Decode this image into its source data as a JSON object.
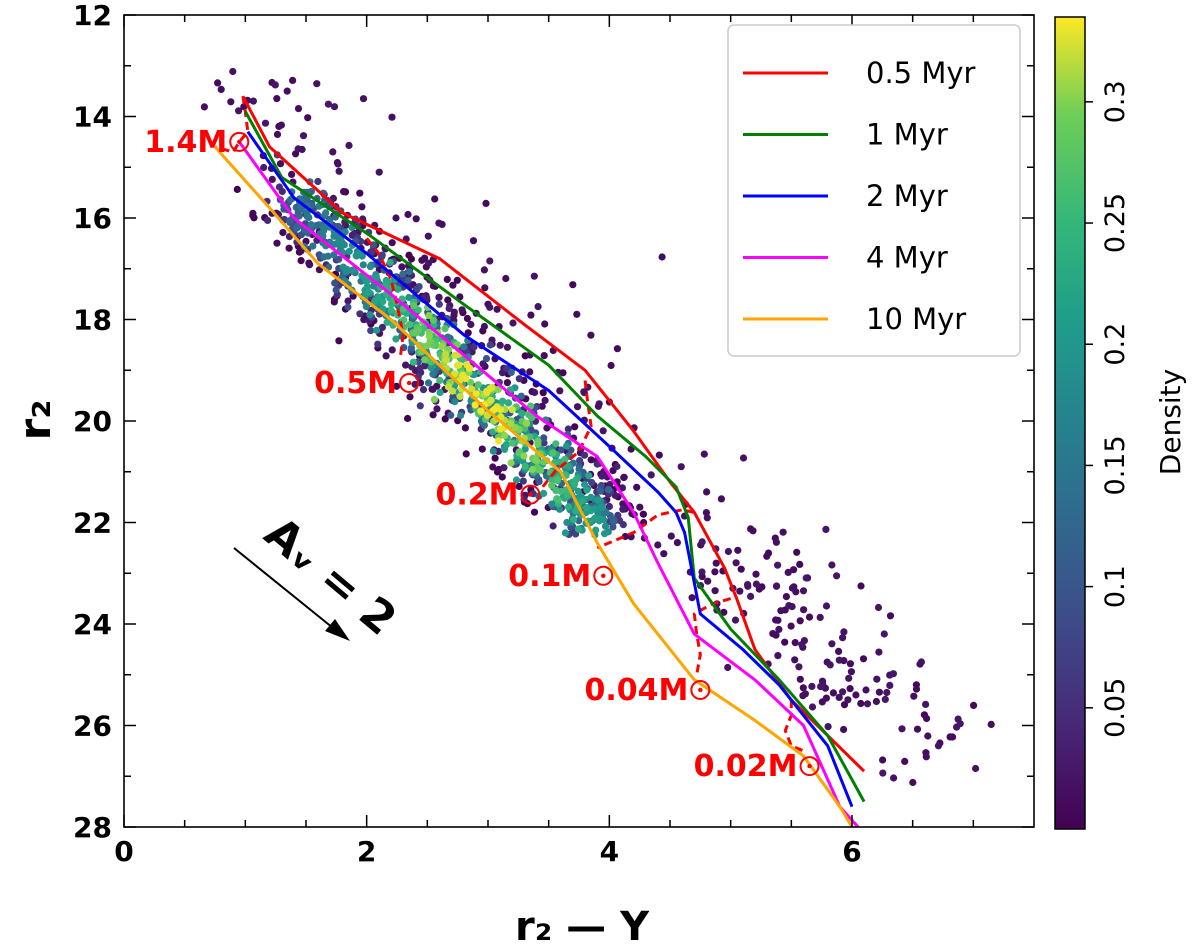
{
  "chart_data": {
    "type": "scatter",
    "title": "",
    "xlabel": "r₂ — Y",
    "ylabel": "r₂",
    "xlim": [
      0,
      7.5
    ],
    "ylim": [
      28,
      12
    ],
    "x_ticks": [
      "0",
      "2",
      "4",
      "6"
    ],
    "y_ticks": [
      "12",
      "14",
      "16",
      "18",
      "20",
      "22",
      "24",
      "26",
      "28"
    ],
    "colorbar": {
      "label": "Density",
      "range": [
        0.0,
        0.335
      ],
      "ticks": [
        "0.05",
        "0.1",
        "0.15",
        "0.2",
        "0.25",
        "0.3"
      ]
    },
    "isochrones": [
      {
        "name": "0.5 Myr",
        "color": "#ff0000",
        "points": [
          [
            0.98,
            13.6
          ],
          [
            1.2,
            14.6
          ],
          [
            1.8,
            15.9
          ],
          [
            2.6,
            16.8
          ],
          [
            3.3,
            18.1
          ],
          [
            3.8,
            19.0
          ],
          [
            4.2,
            20.2
          ],
          [
            4.5,
            21.2
          ],
          [
            4.7,
            21.8
          ],
          [
            4.95,
            22.9
          ],
          [
            5.05,
            23.5
          ],
          [
            5.2,
            24.5
          ],
          [
            5.5,
            25.5
          ],
          [
            5.8,
            26.2
          ],
          [
            6.1,
            26.9
          ]
        ]
      },
      {
        "name": "1 Myr",
        "color": "#008000",
        "points": [
          [
            1.0,
            13.9
          ],
          [
            1.3,
            15.2
          ],
          [
            2.0,
            16.3
          ],
          [
            2.8,
            17.7
          ],
          [
            3.5,
            18.9
          ],
          [
            3.9,
            19.9
          ],
          [
            4.3,
            20.7
          ],
          [
            4.55,
            21.3
          ],
          [
            4.65,
            21.9
          ],
          [
            4.7,
            23.1
          ],
          [
            5.0,
            24.1
          ],
          [
            5.4,
            25.1
          ],
          [
            5.8,
            26.2
          ],
          [
            6.1,
            27.5
          ]
        ]
      },
      {
        "name": "2 Myr",
        "color": "#0000ff",
        "points": [
          [
            1.02,
            14.3
          ],
          [
            1.4,
            15.6
          ],
          [
            2.0,
            16.7
          ],
          [
            2.8,
            18.3
          ],
          [
            3.5,
            19.4
          ],
          [
            4.0,
            20.5
          ],
          [
            4.4,
            21.4
          ],
          [
            4.55,
            21.8
          ],
          [
            4.62,
            22.2
          ],
          [
            4.75,
            23.8
          ],
          [
            5.1,
            24.5
          ],
          [
            5.4,
            25.2
          ],
          [
            5.8,
            26.4
          ],
          [
            6.0,
            27.6
          ]
        ]
      },
      {
        "name": "4 Myr",
        "color": "#ff00ff",
        "points": [
          [
            0.95,
            14.5
          ],
          [
            1.4,
            16.0
          ],
          [
            2.2,
            17.5
          ],
          [
            2.8,
            18.7
          ],
          [
            3.4,
            19.9
          ],
          [
            3.9,
            20.7
          ],
          [
            4.2,
            21.8
          ],
          [
            4.4,
            22.8
          ],
          [
            4.7,
            24.2
          ],
          [
            5.2,
            25.1
          ],
          [
            5.6,
            26.0
          ],
          [
            5.9,
            27.6
          ],
          [
            6.05,
            28.0
          ]
        ]
      },
      {
        "name": "10 Myr",
        "color": "#ffa500",
        "points": [
          [
            0.75,
            14.6
          ],
          [
            1.2,
            15.8
          ],
          [
            1.6,
            16.9
          ],
          [
            2.2,
            18.0
          ],
          [
            3.0,
            19.8
          ],
          [
            3.6,
            21.0
          ],
          [
            3.9,
            22.4
          ],
          [
            4.2,
            23.6
          ],
          [
            4.7,
            25.1
          ],
          [
            5.2,
            25.9
          ],
          [
            5.6,
            26.6
          ],
          [
            5.9,
            27.6
          ],
          [
            6.0,
            28.0
          ]
        ]
      }
    ],
    "mass_tracks": [
      {
        "label": "1.4M",
        "marker": [
          0.95,
          14.5
        ],
        "path": [
          [
            0.98,
            13.6
          ],
          [
            1.0,
            13.9
          ],
          [
            1.02,
            14.3
          ],
          [
            0.95,
            14.5
          ],
          [
            0.9,
            14.7
          ],
          [
            0.75,
            14.6
          ]
        ]
      },
      {
        "label": "0.5M",
        "marker": [
          2.35,
          19.25
        ],
        "path": [
          [
            2.0,
            16.4
          ],
          [
            2.1,
            16.7
          ],
          [
            2.2,
            17.2
          ],
          [
            2.25,
            17.7
          ],
          [
            2.3,
            18.3
          ],
          [
            2.28,
            18.7
          ]
        ]
      },
      {
        "label": "0.2M",
        "marker": [
          3.35,
          21.45
        ],
        "path": [
          [
            3.8,
            19.2
          ],
          [
            3.82,
            19.6
          ],
          [
            3.85,
            20.1
          ],
          [
            3.75,
            20.6
          ],
          [
            3.55,
            21.0
          ],
          [
            3.45,
            21.3
          ]
        ]
      },
      {
        "label": "0.1M",
        "marker": [
          3.95,
          23.05
        ],
        "path": [
          [
            4.7,
            21.8
          ],
          [
            4.6,
            21.75
          ],
          [
            4.4,
            21.85
          ],
          [
            4.2,
            22.2
          ],
          [
            4.0,
            22.4
          ],
          [
            3.9,
            22.5
          ]
        ]
      },
      {
        "label": "0.04M",
        "marker": [
          4.75,
          25.3
        ],
        "path": [
          [
            5.0,
            23.5
          ],
          [
            4.85,
            23.6
          ],
          [
            4.7,
            23.8
          ],
          [
            4.72,
            24.2
          ],
          [
            4.75,
            24.6
          ],
          [
            4.72,
            25.0
          ]
        ]
      },
      {
        "label": "0.02M",
        "marker": [
          5.65,
          26.8
        ],
        "path": [
          [
            5.5,
            25.5
          ],
          [
            5.5,
            25.8
          ],
          [
            5.45,
            26.1
          ],
          [
            5.5,
            26.4
          ],
          [
            5.6,
            26.5
          ]
        ]
      }
    ],
    "annotation": "Aᵥ = 2",
    "points_generated": "Scatter of ~1300 sources, density-colored (viridis), distributed along the sequence from r₂≈13 to ≈27"
  },
  "legend": [
    "0.5 Myr",
    "1 Myr",
    "2 Myr",
    "4 Myr",
    "10 Myr"
  ],
  "colors": {
    "red": "#ff0000",
    "green": "#008000",
    "blue": "#0000ff",
    "magenta": "#ff00ff",
    "orange": "#ffa500"
  }
}
